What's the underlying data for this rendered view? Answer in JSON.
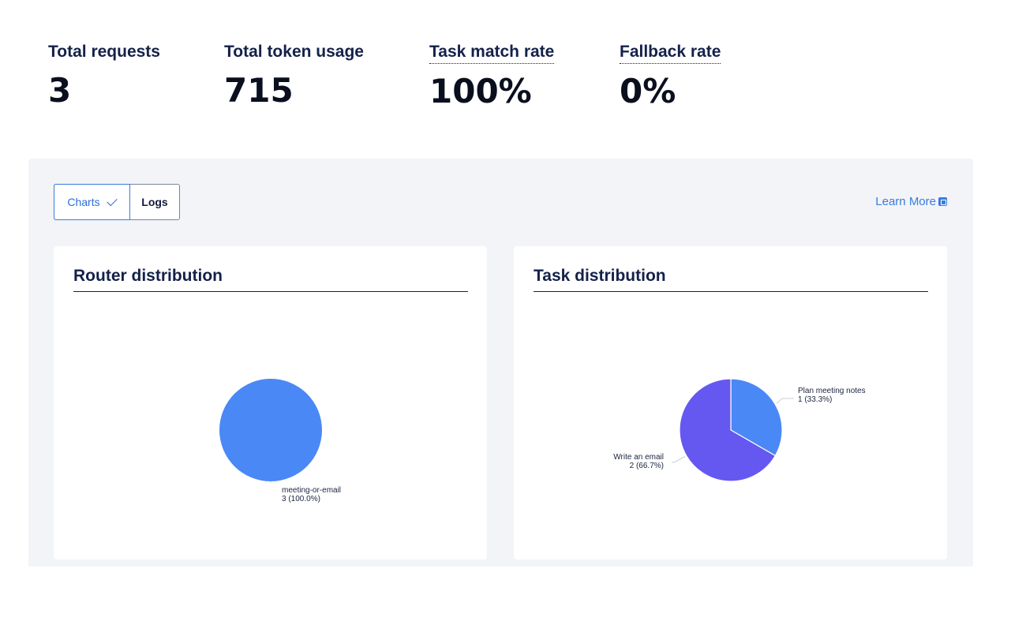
{
  "stats": [
    {
      "label": "Total requests",
      "value": "3"
    },
    {
      "label": "Total token usage",
      "value": "715"
    },
    {
      "label": "Task match rate",
      "value": "100%"
    },
    {
      "label": "Fallback rate",
      "value": "0%"
    }
  ],
  "toggle": {
    "charts_label": "Charts",
    "logs_label": "Logs",
    "selected": "Charts"
  },
  "learn_more": {
    "label": "Learn More",
    "icon": "external-link-icon"
  },
  "cards": {
    "router_title": "Router distribution",
    "task_title": "Task distribution"
  },
  "colors": {
    "blue": "#4a88f5",
    "purple": "#6558f1",
    "link": "#3a7be0"
  },
  "chart_data": [
    {
      "type": "pie",
      "title": "Router distribution",
      "slices": [
        {
          "label": "meeting-or-email",
          "value": 3,
          "display": "3 (100.0%)",
          "color": "#4a88f5"
        }
      ]
    },
    {
      "type": "pie",
      "title": "Task distribution",
      "slices": [
        {
          "label": "Plan meeting notes",
          "value": 1,
          "display": "1 (33.3%)",
          "color": "#4a88f5"
        },
        {
          "label": "Write an email",
          "value": 2,
          "display": "2 (66.7%)",
          "color": "#6558f1"
        }
      ]
    }
  ]
}
